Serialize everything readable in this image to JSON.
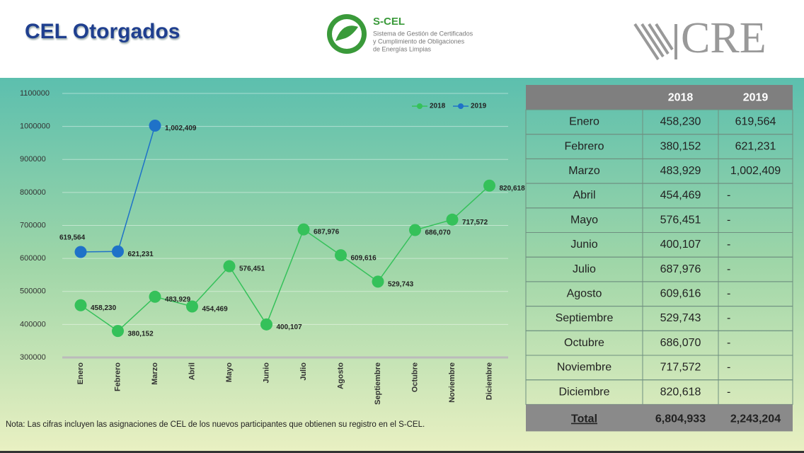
{
  "header": {
    "title": "CEL Otorgados",
    "logo_name": "S-CEL",
    "logo_lines": [
      "Sistema de Gestión de Certificados",
      "y Cumplimiento de Obligaciones",
      "de Energías Limpias"
    ],
    "agency": "CRE"
  },
  "chart_data": {
    "type": "line",
    "categories": [
      "Enero",
      "Febrero",
      "Marzo",
      "Abril",
      "Mayo",
      "Junio",
      "Julio",
      "Agosto",
      "Septiembre",
      "Octubre",
      "Noviembre",
      "Diciembre"
    ],
    "series": [
      {
        "name": "2018",
        "color": "#35c15a",
        "values": [
          458230,
          380152,
          483929,
          454469,
          576451,
          400107,
          687976,
          609616,
          529743,
          686070,
          717572,
          820618
        ],
        "value_labels": [
          "458,230",
          "380,152",
          "483,929",
          "454,469",
          "576,451",
          "400,107",
          "687,976",
          "609,616",
          "529,743",
          "686,070",
          "717,572",
          "820,618"
        ]
      },
      {
        "name": "2019",
        "color": "#1f72c8",
        "values": [
          619564,
          621231,
          1002409,
          null,
          null,
          null,
          null,
          null,
          null,
          null,
          null,
          null
        ],
        "value_labels": [
          "619,564",
          "621,231",
          "1,002,409",
          null,
          null,
          null,
          null,
          null,
          null,
          null,
          null,
          null
        ]
      }
    ],
    "ylim": [
      300000,
      1100000
    ],
    "yticks": [
      300000,
      400000,
      500000,
      600000,
      700000,
      800000,
      900000,
      1000000,
      1100000
    ],
    "grid": true,
    "legend": "upper right"
  },
  "table": {
    "columns": [
      "2018",
      "2019"
    ],
    "rows": [
      [
        "Enero",
        "458,230",
        "619,564"
      ],
      [
        "Febrero",
        "380,152",
        "621,231"
      ],
      [
        "Marzo",
        "483,929",
        "1,002,409"
      ],
      [
        "Abril",
        "454,469",
        "-"
      ],
      [
        "Mayo",
        "576,451",
        "-"
      ],
      [
        "Junio",
        "400,107",
        "-"
      ],
      [
        "Julio",
        "687,976",
        "-"
      ],
      [
        "Agosto",
        "609,616",
        "-"
      ],
      [
        "Septiembre",
        "529,743",
        "-"
      ],
      [
        "Octubre",
        "686,070",
        "-"
      ],
      [
        "Noviembre",
        "717,572",
        "-"
      ],
      [
        "Diciembre",
        "820,618",
        "-"
      ]
    ],
    "total": [
      "Total",
      "6,804,933",
      "2,243,204"
    ]
  },
  "note": "Nota: Las cifras incluyen las asignaciones de CEL de los nuevos participantes que obtienen su registro en el S-CEL."
}
